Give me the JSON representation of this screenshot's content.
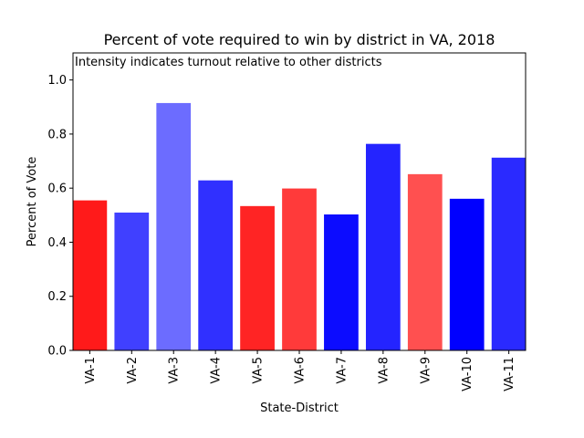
{
  "chart_data": {
    "type": "bar",
    "title": "Percent of vote required to win by district in VA, 2018",
    "annotation": "Intensity indicates turnout relative to other districts",
    "xlabel": "State-District",
    "ylabel": "Percent of Vote",
    "ylim": [
      0,
      1.1
    ],
    "yticks": [
      0.0,
      0.2,
      0.4,
      0.6,
      0.8,
      1.0
    ],
    "ytick_labels": [
      "0.0",
      "0.2",
      "0.4",
      "0.6",
      "0.8",
      "1.0"
    ],
    "grid": false,
    "categories": [
      "VA-1",
      "VA-2",
      "VA-3",
      "VA-4",
      "VA-5",
      "VA-6",
      "VA-7",
      "VA-8",
      "VA-9",
      "VA-10",
      "VA-11"
    ],
    "values": [
      0.553,
      0.508,
      0.913,
      0.627,
      0.532,
      0.597,
      0.501,
      0.762,
      0.65,
      0.559,
      0.711
    ],
    "colors": [
      "#ff1a1a",
      "#4040ff",
      "#6c6cff",
      "#3030ff",
      "#ff2424",
      "#ff3a3a",
      "#0c0cff",
      "#2424ff",
      "#ff5050",
      "#0000ff",
      "#2a2aff"
    ]
  }
}
